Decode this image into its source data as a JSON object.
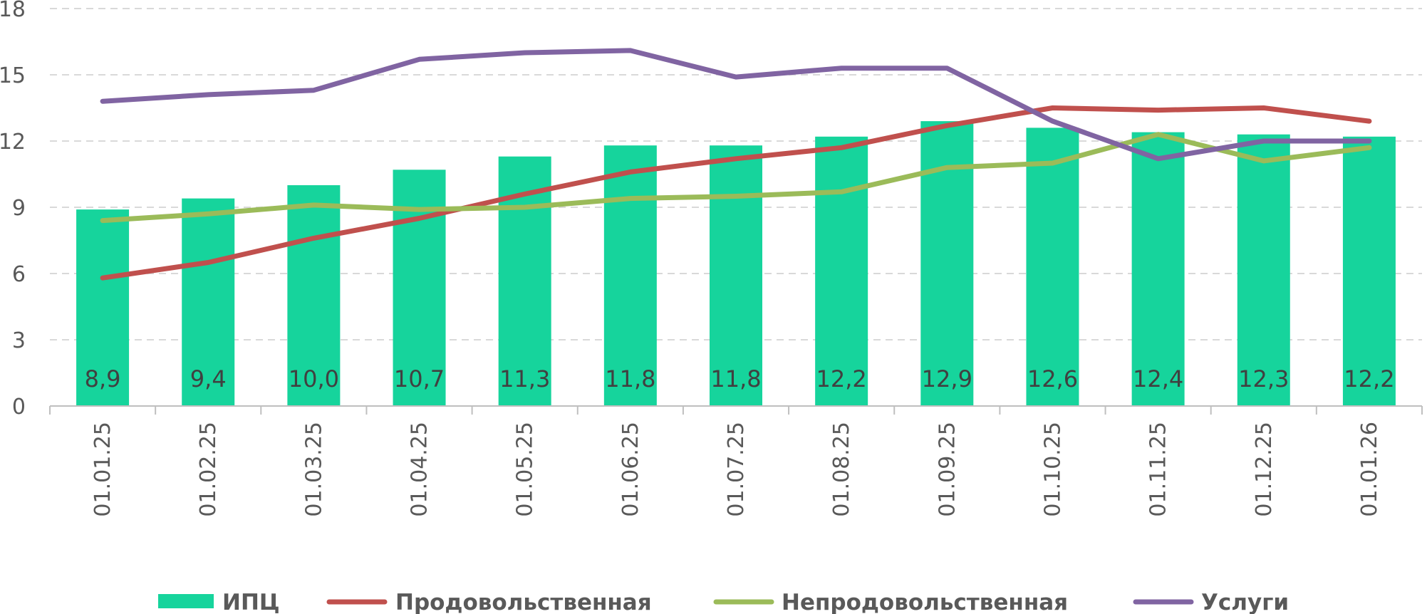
{
  "chart_data": {
    "type": "bar",
    "categories": [
      "01.01.25",
      "01.02.25",
      "01.03.25",
      "01.04.25",
      "01.05.25",
      "01.06.25",
      "01.07.25",
      "01.08.25",
      "01.09.25",
      "01.10.25",
      "01.11.25",
      "01.12.25",
      "01.01.26"
    ],
    "series": [
      {
        "name": "ИПЦ",
        "kind": "bar",
        "color": "#16D49C",
        "values": [
          8.9,
          9.4,
          10.0,
          10.7,
          11.3,
          11.8,
          11.8,
          12.2,
          12.9,
          12.6,
          12.4,
          12.3,
          12.2
        ],
        "labels": [
          "8,9",
          "9,4",
          "10,0",
          "10,7",
          "11,3",
          "11,8",
          "11,8",
          "12,2",
          "12,9",
          "12,6",
          "12,4",
          "12,3",
          "12,2"
        ]
      },
      {
        "name": "Продовольственная",
        "kind": "line",
        "color": "#C0504D",
        "values": [
          5.8,
          6.5,
          7.6,
          8.5,
          9.6,
          10.6,
          11.2,
          11.7,
          12.7,
          13.5,
          13.4,
          13.5,
          12.9
        ]
      },
      {
        "name": "Непродовольственная",
        "kind": "line",
        "color": "#9BBB59",
        "values": [
          8.4,
          8.7,
          9.1,
          8.9,
          9.0,
          9.4,
          9.5,
          9.7,
          10.8,
          11.0,
          12.3,
          11.1,
          11.7
        ]
      },
      {
        "name": "Услуги",
        "kind": "line",
        "color": "#8064A2",
        "values": [
          13.8,
          14.1,
          14.3,
          15.7,
          16.0,
          16.1,
          14.9,
          15.3,
          15.3,
          12.9,
          11.2,
          12.0,
          12.0
        ]
      }
    ],
    "yticks": [
      "0",
      "3",
      "6",
      "9",
      "12",
      "15",
      "18"
    ],
    "ylim": [
      0,
      18
    ],
    "grid": true,
    "legend_position": "bottom"
  }
}
